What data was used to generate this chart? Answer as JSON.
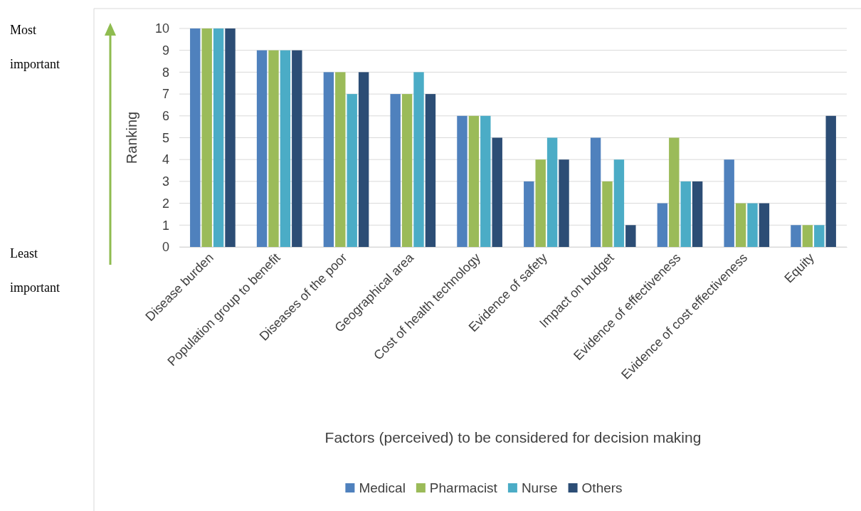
{
  "chart_data": {
    "type": "bar",
    "xlabel": "Factors (perceived) to be considered for decision making",
    "ylabel": "Ranking",
    "categories": [
      "Disease burden",
      "Population group to benefit",
      "Diseases of the poor",
      "Geographical area",
      "Cost of health technology",
      "Evidence of safety",
      "Impact on budget",
      "Evidence of effectiveness",
      "Evidence of cost effectiveness",
      "Equity"
    ],
    "series": [
      {
        "name": "Medical",
        "color": "#4f81bd",
        "values": [
          10,
          9,
          8,
          7,
          6,
          3,
          5,
          2,
          4,
          1
        ]
      },
      {
        "name": "Pharmacist",
        "color": "#9bbb59",
        "values": [
          10,
          9,
          8,
          7,
          6,
          4,
          3,
          5,
          2,
          1
        ]
      },
      {
        "name": "Nurse",
        "color": "#4bacc6",
        "values": [
          10,
          9,
          7,
          8,
          6,
          5,
          4,
          3,
          2,
          1
        ]
      },
      {
        "name": "Others",
        "color": "#2c4d75",
        "values": [
          10,
          9,
          8,
          7,
          5,
          4,
          1,
          3,
          2,
          6
        ]
      }
    ],
    "ylim": [
      0,
      10
    ],
    "yticks": [
      0,
      1,
      2,
      3,
      4,
      5,
      6,
      7,
      8,
      9,
      10
    ],
    "grid": "y",
    "legend": "bottom",
    "annotations": [
      "Most important",
      "Least important"
    ]
  }
}
